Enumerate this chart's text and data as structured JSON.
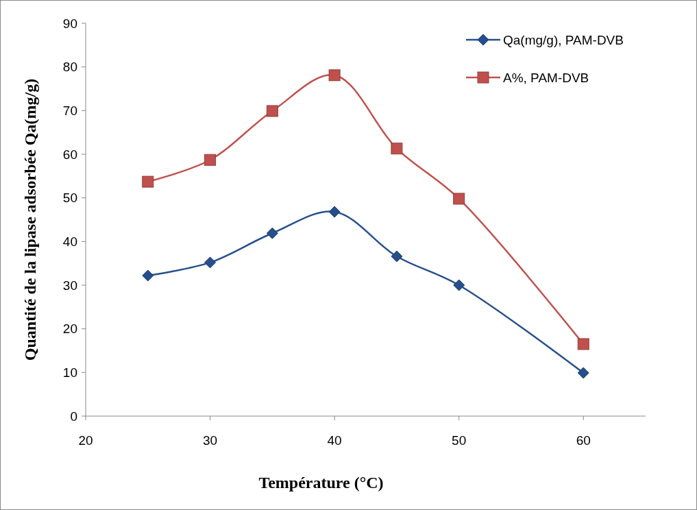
{
  "chart_data": {
    "type": "line",
    "xlabel": "Température (°C)",
    "ylabel": "Quantité de la lipase adsorbée Qa(mg/g)",
    "x": [
      25,
      30,
      35,
      40,
      45,
      50,
      60
    ],
    "series": [
      {
        "name": "Qa(mg/g), PAM-DVB",
        "color": "#254f8c",
        "marker": "diamond",
        "values": [
          32.2,
          35.2,
          41.9,
          46.8,
          36.6,
          30.0,
          9.9
        ]
      },
      {
        "name": "A%, PAM-DVB",
        "color": "#c0504d",
        "marker": "square",
        "values": [
          53.7,
          58.7,
          69.9,
          78.1,
          61.3,
          49.8,
          16.5
        ]
      }
    ],
    "xlim": [
      20,
      65
    ],
    "xticks": [
      20,
      30,
      40,
      50,
      60
    ],
    "ylim": [
      0,
      90
    ],
    "yticks": [
      0,
      10,
      20,
      30,
      40,
      50,
      60,
      70,
      80,
      90
    ],
    "grid": false,
    "legend": "top right",
    "line_style": "solid"
  }
}
